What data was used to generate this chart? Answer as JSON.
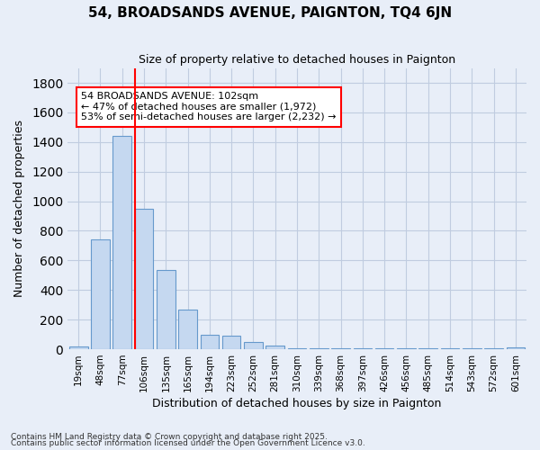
{
  "title": "54, BROADSANDS AVENUE, PAIGNTON, TQ4 6JN",
  "subtitle": "Size of property relative to detached houses in Paignton",
  "xlabel": "Distribution of detached houses by size in Paignton",
  "ylabel": "Number of detached properties",
  "bar_labels": [
    "19sqm",
    "48sqm",
    "77sqm",
    "106sqm",
    "135sqm",
    "165sqm",
    "194sqm",
    "223sqm",
    "252sqm",
    "281sqm",
    "310sqm",
    "339sqm",
    "368sqm",
    "397sqm",
    "426sqm",
    "456sqm",
    "485sqm",
    "514sqm",
    "543sqm",
    "572sqm",
    "601sqm"
  ],
  "bar_values": [
    20,
    740,
    1440,
    950,
    535,
    265,
    100,
    90,
    50,
    25,
    5,
    5,
    5,
    5,
    5,
    5,
    5,
    5,
    5,
    5,
    10
  ],
  "bar_color": "#c5d8f0",
  "bar_edge_color": "#6699cc",
  "vline_position": 2.575,
  "vline_color": "red",
  "annotation_title": "54 BROADSANDS AVENUE: 102sqm",
  "annotation_line1": "← 47% of detached houses are smaller (1,972)",
  "annotation_line2": "53% of semi-detached houses are larger (2,232) →",
  "annotation_box_color": "white",
  "annotation_box_edge": "red",
  "ylim": [
    0,
    1900
  ],
  "yticks": [
    0,
    200,
    400,
    600,
    800,
    1000,
    1200,
    1400,
    1600,
    1800
  ],
  "grid_color": "#c0cce0",
  "bg_color": "#e8eef8",
  "footer1": "Contains HM Land Registry data © Crown copyright and database right 2025.",
  "footer2": "Contains public sector information licensed under the Open Government Licence v3.0."
}
